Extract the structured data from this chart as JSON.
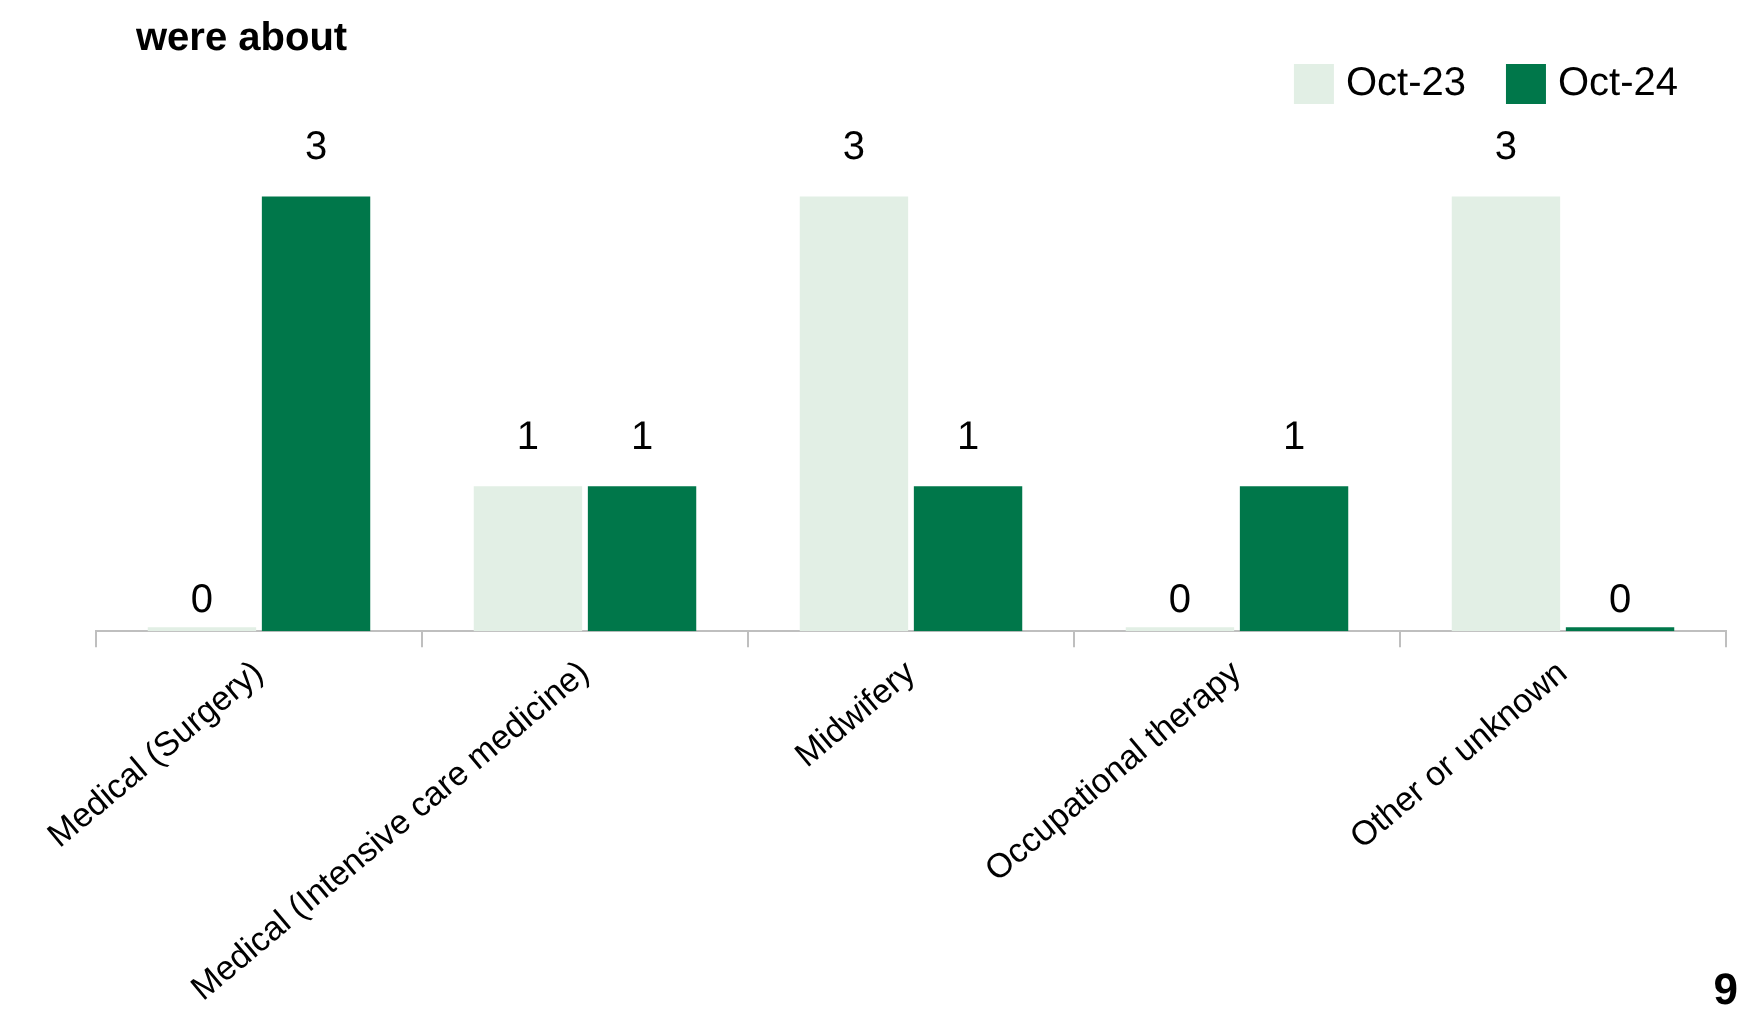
{
  "chart_data": {
    "type": "bar",
    "title": "were about",
    "categories": [
      "Medical (Surgery)",
      "Medical (Intensive care medicine)",
      "Midwifery",
      "Occupational therapy",
      "Other or unknown"
    ],
    "series": [
      {
        "name": "Oct-23",
        "color": "#e2efe5",
        "values": [
          0,
          1,
          3,
          0,
          3
        ]
      },
      {
        "name": "Oct-24",
        "color": "#00774a",
        "values": [
          3,
          1,
          1,
          1,
          0
        ]
      }
    ],
    "data_labels": true,
    "legend": "top right",
    "grid": false,
    "annotations": [
      "9"
    ]
  }
}
